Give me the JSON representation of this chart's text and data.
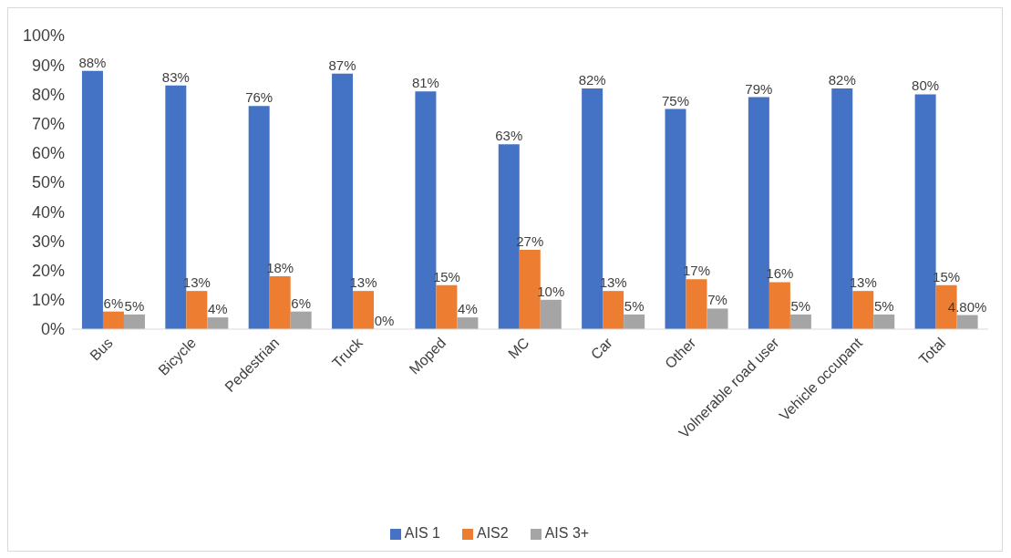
{
  "chart_data": {
    "type": "bar",
    "categories": [
      "Bus",
      "Bicycle",
      "Pedestrian",
      "Truck",
      "Moped",
      "MC",
      "Car",
      "Other",
      "Volnerable road user",
      "Vehicle occupant",
      "Total"
    ],
    "series": [
      {
        "name": "AIS 1",
        "color": "#4472c4",
        "values": [
          88,
          83,
          76,
          87,
          81,
          63,
          82,
          75,
          79,
          82,
          80
        ],
        "value_labels": [
          "88%",
          "83%",
          "76%",
          "87%",
          "81%",
          "63%",
          "82%",
          "75%",
          "79%",
          "82%",
          "80%"
        ]
      },
      {
        "name": "AIS2",
        "color": "#ed7d31",
        "values": [
          6,
          13,
          18,
          13,
          15,
          27,
          13,
          17,
          16,
          13,
          15
        ],
        "value_labels": [
          "6%",
          "13%",
          "18%",
          "13%",
          "15%",
          "27%",
          "13%",
          "17%",
          "16%",
          "13%",
          "15%"
        ]
      },
      {
        "name": "AIS 3+",
        "color": "#a5a5a5",
        "values": [
          5,
          4,
          6,
          0,
          4,
          10,
          5,
          7,
          5,
          5,
          4.8
        ],
        "value_labels": [
          "5%",
          "4%",
          "6%",
          "0%",
          "4%",
          "10%",
          "5%",
          "7%",
          "5%",
          "5%",
          "4.80%"
        ]
      }
    ],
    "ylim": [
      0,
      100
    ],
    "yticks": [
      {
        "value": 0,
        "label": "0%"
      },
      {
        "value": 10,
        "label": "10%"
      },
      {
        "value": 20,
        "label": "20%"
      },
      {
        "value": 30,
        "label": "30%"
      },
      {
        "value": 40,
        "label": "40%"
      },
      {
        "value": 50,
        "label": "50%"
      },
      {
        "value": 60,
        "label": "60%"
      },
      {
        "value": 70,
        "label": "70%"
      },
      {
        "value": 80,
        "label": "80%"
      },
      {
        "value": 90,
        "label": "90%"
      },
      {
        "value": 100,
        "label": "100%"
      }
    ],
    "legend": "bottom"
  }
}
